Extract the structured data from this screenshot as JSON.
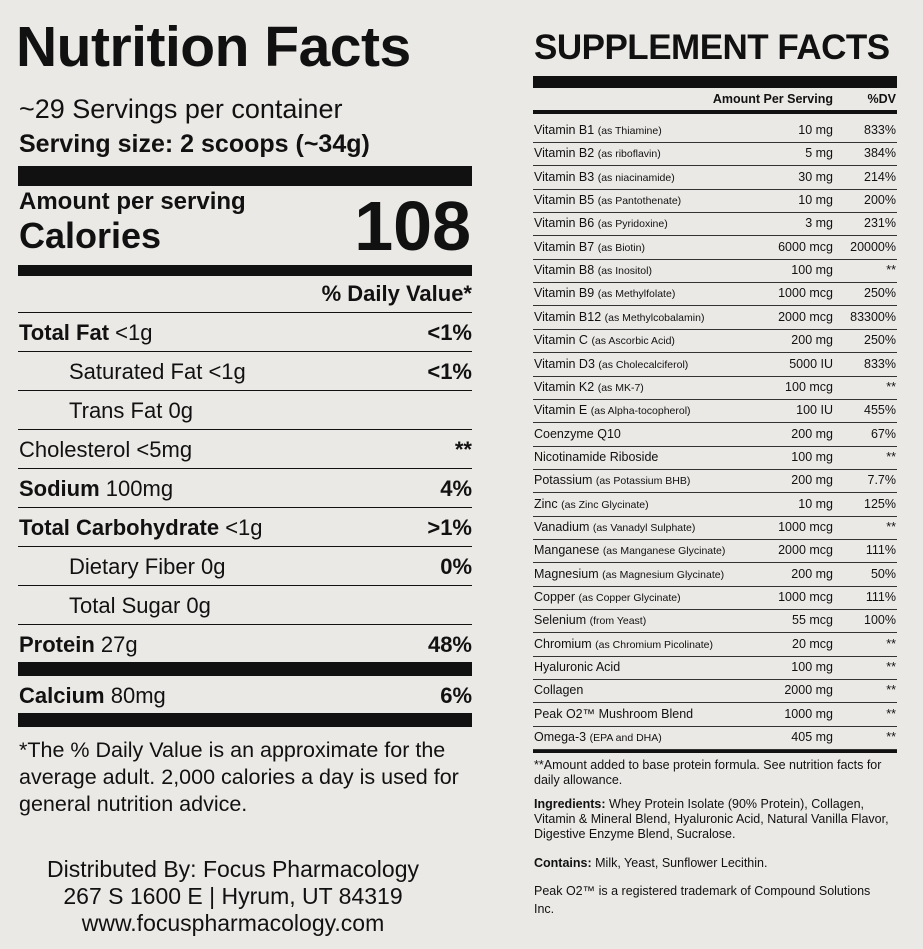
{
  "nutrition": {
    "title": "Nutrition Facts",
    "servings": "~29 Servings per container",
    "serving_size": "Serving size: 2 scoops (~34g)",
    "amount_label": "Amount per serving",
    "calories_label": "Calories",
    "calories_value": "108",
    "dv_header": "% Daily Value*",
    "rows": [
      {
        "name": "Total Fat",
        "amount": "<1g",
        "dv": "<1%",
        "bold": true
      },
      {
        "name": "Saturated Fat",
        "amount": "<1g",
        "dv": "<1%",
        "indent": true
      },
      {
        "name": "Trans Fat",
        "amount": "0g",
        "indent": true
      },
      {
        "name": "Cholesterol",
        "amount": "<5mg",
        "dv": "**"
      },
      {
        "name": "Sodium",
        "amount": "100mg",
        "dv": "4%",
        "bold": true
      },
      {
        "name": "Total Carbohydrate",
        "amount": "<1g",
        "dv": ">1%",
        "bold": true
      },
      {
        "name": "Dietary Fiber",
        "amount": "0g",
        "dv": "0%",
        "indent": true
      },
      {
        "name": "Total Sugar",
        "amount": "0g",
        "indent": true
      },
      {
        "name": "Protein",
        "amount": "27g",
        "dv": "48%",
        "bold": true,
        "thick_rule": true
      },
      {
        "name": "Calcium",
        "amount": "80mg",
        "dv": "6%",
        "bold": true,
        "thick_rule": true
      }
    ],
    "footnote": "*The % Daily Value is an approximate for the average adult. 2,000 calories a day is used for general nutrition advice.",
    "distributor": [
      "Distributed By: Focus Pharmacology",
      "267 S 1600 E | Hyrum, UT 84319",
      "www.focuspharmacology.com"
    ]
  },
  "supplement": {
    "title": "SUPPLEMENT FACTS",
    "amount_header": "Amount Per Serving",
    "dv_header": "%DV",
    "rows": [
      {
        "name": "Vitamin B1",
        "note": "(as Thiamine)",
        "amount": "10 mg",
        "dv": "833%"
      },
      {
        "name": "Vitamin B2",
        "note": "(as riboflavin)",
        "amount": "5 mg",
        "dv": "384%"
      },
      {
        "name": "Vitamin B3",
        "note": "(as niacinamide)",
        "amount": "30 mg",
        "dv": "214%"
      },
      {
        "name": "Vitamin B5",
        "note": "(as Pantothenate)",
        "amount": "10 mg",
        "dv": "200%"
      },
      {
        "name": "Vitamin B6",
        "note": "(as Pyridoxine)",
        "amount": "3 mg",
        "dv": "231%"
      },
      {
        "name": "Vitamin B7",
        "note": "(as Biotin)",
        "amount": "6000 mcg",
        "dv": "20000%"
      },
      {
        "name": "Vitamin B8",
        "note": "(as Inositol)",
        "amount": "100 mg",
        "dv": "**"
      },
      {
        "name": "Vitamin B9",
        "note": "(as Methylfolate)",
        "amount": "1000 mcg",
        "dv": "250%"
      },
      {
        "name": "Vitamin B12",
        "note": "(as Methylcobalamin)",
        "amount": "2000 mcg",
        "dv": "83300%"
      },
      {
        "name": "Vitamin C",
        "note": "(as Ascorbic Acid)",
        "amount": "200 mg",
        "dv": "250%"
      },
      {
        "name": "Vitamin D3",
        "note": "(as Cholecalciferol)",
        "amount": "5000 IU",
        "dv": "833%"
      },
      {
        "name": "Vitamin K2",
        "note": "(as MK-7)",
        "amount": "100 mcg",
        "dv": "**"
      },
      {
        "name": "Vitamin E",
        "note": "(as Alpha-tocopherol)",
        "amount": "100 IU",
        "dv": "455%"
      },
      {
        "name": "Coenzyme Q10",
        "amount": "200 mg",
        "dv": "67%"
      },
      {
        "name": "Nicotinamide Riboside",
        "amount": "100 mg",
        "dv": "**"
      },
      {
        "name": "Potassium",
        "note": "(as Potassium BHB)",
        "amount": "200 mg",
        "dv": "7.7%"
      },
      {
        "name": "Zinc",
        "note": "(as Zinc Glycinate)",
        "amount": "10 mg",
        "dv": "125%"
      },
      {
        "name": "Vanadium",
        "note": "(as Vanadyl Sulphate)",
        "amount": "1000 mcg",
        "dv": "**"
      },
      {
        "name": "Manganese",
        "note": "(as Manganese Glycinate)",
        "amount": "2000 mcg",
        "dv": "111%"
      },
      {
        "name": "Magnesium",
        "note": "(as Magnesium Glycinate)",
        "amount": "200 mg",
        "dv": "50%"
      },
      {
        "name": "Copper",
        "note": "(as Copper Glycinate)",
        "amount": "1000 mcg",
        "dv": "111%"
      },
      {
        "name": "Selenium",
        "note": "(from Yeast)",
        "amount": "55 mcg",
        "dv": "100%"
      },
      {
        "name": "Chromium",
        "note": "(as Chromium Picolinate)",
        "amount": "20 mcg",
        "dv": "**"
      },
      {
        "name": "Hyaluronic Acid",
        "amount": "100 mg",
        "dv": "**"
      },
      {
        "name": "Collagen",
        "amount": "2000 mg",
        "dv": "**"
      },
      {
        "name": "Peak O2™ Mushroom Blend",
        "amount": "1000 mg",
        "dv": "**"
      },
      {
        "name": "Omega-3",
        "note": "(EPA and DHA)",
        "amount": "405 mg",
        "dv": "**"
      }
    ],
    "footnote": "**Amount added to base protein formula.  See nutrition facts for daily allowance.",
    "ingredients_label": "Ingredients:",
    "ingredients": "Whey Protein Isolate (90% Protein), Collagen, Vitamin & Mineral Blend, Hyaluronic Acid, Natural Vanilla Flavor, Digestive Enzyme Blend, Sucralose.",
    "contains_label": "Contains:",
    "contains": "Milk, Yeast, Sunflower Lecithin.",
    "trademark": "Peak O2™ is a registered trademark of Compound Solutions Inc."
  }
}
